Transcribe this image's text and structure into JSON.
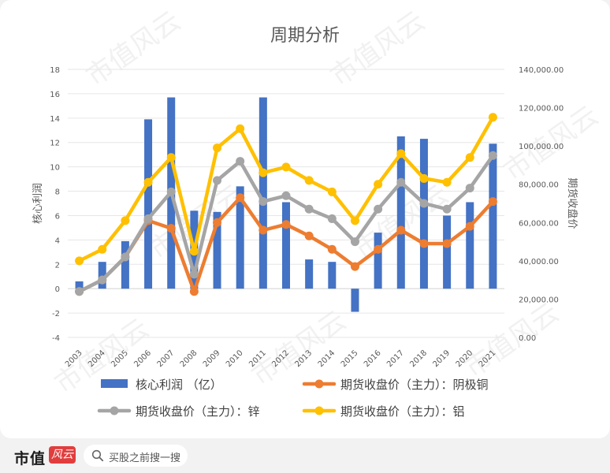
{
  "chart_data": {
    "type": "bar+line",
    "title": "周期分析",
    "categories": [
      "2003",
      "2004",
      "2005",
      "2006",
      "2007",
      "2008",
      "2009",
      "2010",
      "2011",
      "2012",
      "2013",
      "2014",
      "2015",
      "2016",
      "2017",
      "2018",
      "2019",
      "2020",
      "2021"
    ],
    "left_axis": {
      "label": "核心利润",
      "ylim": [
        -4,
        18
      ],
      "ticks": [
        "-4",
        "-2",
        "0",
        "2",
        "4",
        "6",
        "8",
        "10",
        "12",
        "14",
        "16",
        "18"
      ]
    },
    "right_axis": {
      "label": "期货收盘价",
      "ylim": [
        0,
        140000
      ],
      "ticks": [
        "0.00",
        "20,000.00",
        "40,000.00",
        "60,000.00",
        "80,000.00",
        "100,000.00",
        "120,000.00",
        "140,000.00"
      ]
    },
    "bar_series": {
      "name": "核心利润 （亿）",
      "color": "#4472c4",
      "values": [
        0.6,
        2.2,
        3.9,
        13.9,
        15.7,
        6.4,
        6.3,
        8.4,
        15.7,
        7.1,
        2.4,
        2.2,
        -1.9,
        4.6,
        12.5,
        12.3,
        6.0,
        7.1,
        11.9
      ]
    },
    "line_series": [
      {
        "name": "期货收盘价（主力）：阴极铜",
        "color": "#ed7d31",
        "values": [
          24000,
          30000,
          42000,
          61000,
          57000,
          24000,
          60000,
          73000,
          56000,
          59000,
          53000,
          46000,
          37000,
          46000,
          56000,
          49000,
          49000,
          58000,
          71000
        ]
      },
      {
        "name": "期货收盘价（主力）：锌",
        "color": "#a5a5a5",
        "values": [
          24000,
          30000,
          42000,
          62000,
          76000,
          33000,
          82000,
          92000,
          71000,
          74000,
          67000,
          62000,
          50000,
          67000,
          81000,
          70000,
          67000,
          78000,
          95000
        ]
      },
      {
        "name": "期货收盘价（主力）：铝",
        "color": "#ffc000",
        "values": [
          40000,
          46000,
          61000,
          81000,
          94000,
          45000,
          99000,
          109000,
          86000,
          89000,
          82000,
          76000,
          61000,
          80000,
          96000,
          83000,
          81000,
          94000,
          115000
        ]
      }
    ],
    "grid": true,
    "legend_position": "bottom"
  },
  "watermark": "市值风云",
  "footer": {
    "brand": "市值",
    "badge": "风云",
    "search_placeholder": "买股之前搜一搜"
  }
}
